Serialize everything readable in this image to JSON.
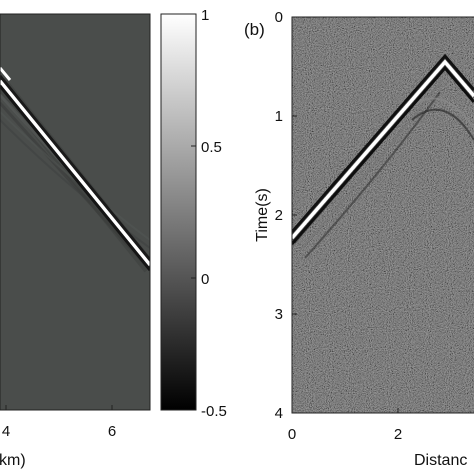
{
  "figure": {
    "panel_a": {
      "x_tick_labels": [
        "4",
        "6"
      ],
      "x_label_fragment": "km)",
      "background_color": "#4a4d4b"
    },
    "colorbar": {
      "tick_labels": [
        "1",
        "0.5",
        "0",
        "-0.5"
      ],
      "range": [
        -0.5,
        1
      ],
      "colormap": "gray"
    },
    "panel_b": {
      "panel_label": "(b)",
      "y_label": "Time(s)",
      "y_tick_labels": [
        "0",
        "1",
        "2",
        "3",
        "4"
      ],
      "x_tick_labels": [
        "0",
        "2"
      ],
      "x_label_fragment": "Distanc",
      "noise": "random gray noise",
      "background_color": "#555555"
    }
  }
}
